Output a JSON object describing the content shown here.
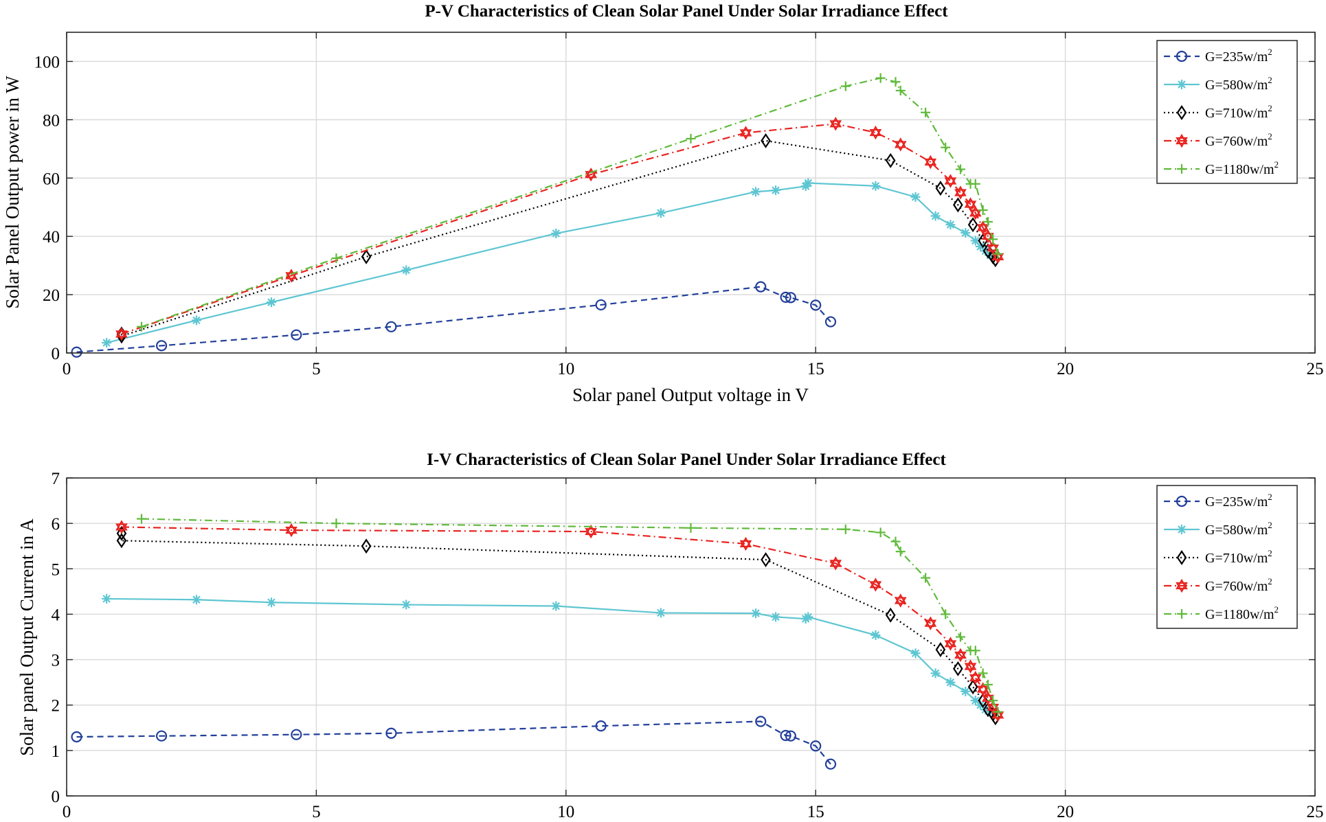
{
  "colors": {
    "G235": "#223f9a",
    "G580": "#5ec6d2",
    "G710": "#000000",
    "G760": "#e8231f",
    "G1180": "#5fba3a"
  },
  "chart_data": [
    {
      "type": "line",
      "title": "P-V Characteristics of Clean Solar Panel Under Solar Irradiance Effect",
      "xlabel": "Solar panel Output voltage in V",
      "ylabel": "Solar Panel Output power in W",
      "xlim": [
        0,
        25
      ],
      "ylim": [
        0,
        110
      ],
      "xticks": [
        0,
        5,
        10,
        15,
        20,
        25
      ],
      "yticks": [
        0,
        20,
        40,
        60,
        80,
        100
      ],
      "grid": true,
      "legend_position": "top-right",
      "series": [
        {
          "name": "G=235w/m",
          "sup": "2",
          "style": "dashed",
          "marker": "circle",
          "color_key": "G235",
          "x": [
            0.2,
            1.9,
            4.6,
            6.5,
            10.7,
            13.9,
            14.4,
            14.5,
            15.0,
            15.3
          ],
          "y": [
            0.3,
            2.5,
            6.2,
            9.0,
            16.5,
            22.7,
            19.1,
            19.0,
            16.4,
            10.7
          ]
        },
        {
          "name": "G=580w/m",
          "sup": "2",
          "style": "solid",
          "marker": "asterisk",
          "color_key": "G580",
          "x": [
            0.8,
            2.6,
            4.1,
            6.8,
            9.8,
            11.9,
            13.8,
            14.2,
            14.8,
            14.85,
            16.2,
            17.0,
            17.4,
            17.7,
            18.0,
            18.2,
            18.3,
            18.4,
            18.5
          ],
          "y": [
            3.5,
            11.2,
            17.4,
            28.4,
            41.0,
            48.0,
            55.3,
            55.8,
            57.2,
            58.3,
            57.3,
            53.5,
            47.0,
            44.0,
            41.2,
            38.5,
            36.5,
            35.0,
            33.5
          ]
        },
        {
          "name": "G=710w/m",
          "sup": "2",
          "style": "dotted",
          "marker": "diamond",
          "color_key": "G710",
          "x": [
            1.1,
            1.1,
            6.0,
            14.0,
            16.5,
            17.5,
            17.85,
            18.15,
            18.35,
            18.45,
            18.55,
            18.6
          ],
          "y": [
            6.5,
            5.8,
            33.0,
            72.8,
            66.0,
            56.5,
            50.8,
            44.0,
            38.5,
            35.0,
            33.0,
            32.0
          ]
        },
        {
          "name": "G=760w/m",
          "sup": "2",
          "style": "dashdot",
          "marker": "hexagram",
          "color_key": "G760",
          "x": [
            1.1,
            4.5,
            10.5,
            13.6,
            15.4,
            16.2,
            16.7,
            17.3,
            17.7,
            17.9,
            18.1,
            18.2,
            18.35,
            18.45,
            18.55,
            18.65
          ],
          "y": [
            6.5,
            26.5,
            61.2,
            75.5,
            78.6,
            75.6,
            71.5,
            65.5,
            59.0,
            55.0,
            51.0,
            48.0,
            43.0,
            40.0,
            36.0,
            33.0
          ]
        },
        {
          "name": "G=1180w/m",
          "sup": "2",
          "style": "dashdot",
          "marker": "plus",
          "color_key": "G1180",
          "x": [
            1.5,
            5.4,
            12.5,
            15.6,
            16.3,
            16.6,
            16.7,
            17.2,
            17.6,
            17.9,
            18.1,
            18.2,
            18.35,
            18.45,
            18.55,
            18.65
          ],
          "y": [
            9.0,
            32.5,
            73.5,
            91.5,
            94.3,
            93.0,
            90.0,
            82.5,
            70.5,
            63.0,
            58.0,
            58.0,
            49.0,
            45.0,
            39.0,
            34.0
          ]
        }
      ]
    },
    {
      "type": "line",
      "title": "I-V Characteristics of Clean Solar Panel Under Solar Irradiance Effect",
      "xlabel": "",
      "ylabel": "Solar panel Output Current in A",
      "xlim": [
        0,
        25
      ],
      "ylim": [
        0,
        7
      ],
      "xticks": [
        0,
        5,
        10,
        15,
        20,
        25
      ],
      "yticks": [
        0,
        1,
        2,
        3,
        4,
        5,
        6,
        7
      ],
      "grid": true,
      "legend_position": "top-right",
      "series": [
        {
          "name": "G=235w/m",
          "sup": "2",
          "style": "dashed",
          "marker": "circle",
          "color_key": "G235",
          "x": [
            0.2,
            1.9,
            4.6,
            6.5,
            10.7,
            13.9,
            14.4,
            14.5,
            15.0,
            15.3
          ],
          "y": [
            1.3,
            1.32,
            1.35,
            1.38,
            1.54,
            1.64,
            1.33,
            1.32,
            1.1,
            0.7
          ]
        },
        {
          "name": "G=580w/m",
          "sup": "2",
          "style": "solid",
          "marker": "asterisk",
          "color_key": "G580",
          "x": [
            0.8,
            2.6,
            4.1,
            6.8,
            9.8,
            11.9,
            13.8,
            14.2,
            14.8,
            14.85,
            16.2,
            17.0,
            17.4,
            17.7,
            18.0,
            18.2,
            18.3,
            18.4,
            18.5
          ],
          "y": [
            4.34,
            4.32,
            4.26,
            4.21,
            4.18,
            4.03,
            4.02,
            3.94,
            3.9,
            3.94,
            3.54,
            3.14,
            2.7,
            2.5,
            2.3,
            2.1,
            2.0,
            1.9,
            1.85
          ]
        },
        {
          "name": "G=710w/m",
          "sup": "2",
          "style": "dotted",
          "marker": "diamond",
          "color_key": "G710",
          "x": [
            1.1,
            1.1,
            6.0,
            14.0,
            16.5,
            17.5,
            17.85,
            18.15,
            18.35,
            18.45,
            18.55,
            18.6
          ],
          "y": [
            5.78,
            5.62,
            5.5,
            5.2,
            3.98,
            3.22,
            2.8,
            2.4,
            2.1,
            1.9,
            1.8,
            1.72
          ]
        },
        {
          "name": "G=760w/m",
          "sup": "2",
          "style": "dashdot",
          "marker": "hexagram",
          "color_key": "G760",
          "x": [
            1.1,
            4.5,
            10.5,
            13.6,
            15.4,
            16.2,
            16.7,
            17.3,
            17.7,
            17.9,
            18.1,
            18.2,
            18.35,
            18.45,
            18.55,
            18.65
          ],
          "y": [
            5.92,
            5.85,
            5.82,
            5.55,
            5.12,
            4.65,
            4.3,
            3.8,
            3.35,
            3.1,
            2.85,
            2.6,
            2.35,
            2.15,
            1.95,
            1.78
          ]
        },
        {
          "name": "G=1180w/m",
          "sup": "2",
          "style": "dashdot",
          "marker": "plus",
          "color_key": "G1180",
          "x": [
            1.5,
            5.4,
            12.5,
            15.6,
            16.3,
            16.6,
            16.7,
            17.2,
            17.6,
            17.9,
            18.1,
            18.2,
            18.35,
            18.45,
            18.55,
            18.65
          ],
          "y": [
            6.1,
            6.0,
            5.9,
            5.87,
            5.8,
            5.6,
            5.38,
            4.8,
            4.0,
            3.5,
            3.2,
            3.2,
            2.7,
            2.45,
            2.1,
            1.85
          ]
        }
      ]
    }
  ]
}
